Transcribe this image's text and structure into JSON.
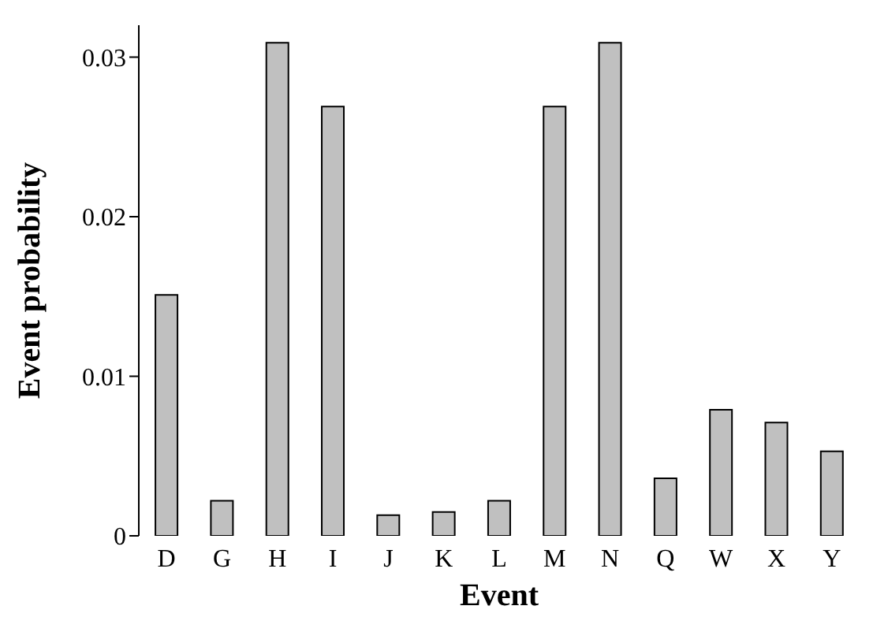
{
  "chart_data": {
    "type": "bar",
    "xlabel": "Event",
    "ylabel": "Event probability",
    "categories": [
      "D",
      "G",
      "H",
      "I",
      "J",
      "K",
      "L",
      "M",
      "N",
      "Q",
      "W",
      "X",
      "Y"
    ],
    "values": [
      0.0151,
      0.0022,
      0.0309,
      0.0269,
      0.0013,
      0.0015,
      0.0022,
      0.0269,
      0.0309,
      0.0036,
      0.0079,
      0.0071,
      0.0053
    ],
    "color": "#c0c0c0",
    "ylim": [
      0,
      0.032
    ],
    "yticks": [
      0,
      0.01,
      0.02,
      0.03
    ],
    "grid": false
  }
}
